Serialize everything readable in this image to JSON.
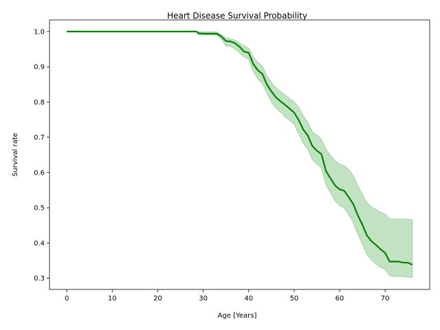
{
  "chart_data": {
    "type": "line",
    "title": "Heart Disease Survival Probability",
    "xlabel": "Age [Years]",
    "ylabel": "Survival rate",
    "xlim": [
      -3.8,
      79.8
    ],
    "ylim": [
      0.268,
      1.033
    ],
    "xticks": [
      0,
      10,
      20,
      30,
      40,
      50,
      60,
      70
    ],
    "yticks": [
      0.3,
      0.4,
      0.5,
      0.6,
      0.7,
      0.8,
      0.9,
      1.0
    ],
    "grid": false,
    "colors": {
      "line": "#008000",
      "band": "#8fcc8f"
    },
    "series": [
      {
        "step": true,
        "x": [
          0,
          28.5,
          29,
          30,
          33,
          34,
          35,
          36,
          37,
          38,
          39,
          40,
          41,
          42,
          43,
          44,
          45,
          46,
          47,
          48,
          49,
          50,
          51,
          52,
          53,
          54,
          55,
          56,
          57,
          58,
          59,
          60,
          61,
          62,
          63,
          64,
          65,
          66,
          67,
          68,
          69,
          70,
          71,
          72,
          73,
          74,
          75,
          76
        ],
        "y": [
          1.0,
          1.0,
          0.995,
          0.994,
          0.994,
          0.986,
          0.973,
          0.972,
          0.967,
          0.957,
          0.943,
          0.94,
          0.908,
          0.89,
          0.88,
          0.85,
          0.83,
          0.813,
          0.802,
          0.792,
          0.781,
          0.77,
          0.749,
          0.722,
          0.705,
          0.675,
          0.662,
          0.652,
          0.604,
          0.583,
          0.563,
          0.552,
          0.548,
          0.53,
          0.51,
          0.478,
          0.452,
          0.421,
          0.405,
          0.394,
          0.382,
          0.372,
          0.347,
          0.347,
          0.347,
          0.344,
          0.344,
          0.338
        ],
        "ci_lower": [
          1.0,
          1.0,
          0.99,
          0.99,
          0.99,
          0.979,
          0.96,
          0.958,
          0.95,
          0.94,
          0.928,
          0.922,
          0.887,
          0.866,
          0.853,
          0.825,
          0.8,
          0.783,
          0.771,
          0.758,
          0.748,
          0.737,
          0.71,
          0.683,
          0.666,
          0.637,
          0.623,
          0.613,
          0.565,
          0.542,
          0.52,
          0.506,
          0.5,
          0.48,
          0.458,
          0.425,
          0.397,
          0.367,
          0.352,
          0.34,
          0.331,
          0.325,
          0.307,
          0.305,
          0.305,
          0.305,
          0.303,
          0.302
        ],
        "ci_upper": [
          1.0,
          1.0,
          0.999,
          0.999,
          0.999,
          0.99,
          0.982,
          0.979,
          0.976,
          0.967,
          0.959,
          0.953,
          0.928,
          0.912,
          0.902,
          0.873,
          0.856,
          0.84,
          0.83,
          0.82,
          0.81,
          0.8,
          0.785,
          0.76,
          0.743,
          0.715,
          0.706,
          0.695,
          0.665,
          0.648,
          0.633,
          0.623,
          0.62,
          0.608,
          0.59,
          0.562,
          0.537,
          0.514,
          0.502,
          0.495,
          0.487,
          0.482,
          0.468,
          0.468,
          0.468,
          0.468,
          0.468,
          0.466
        ]
      }
    ]
  }
}
